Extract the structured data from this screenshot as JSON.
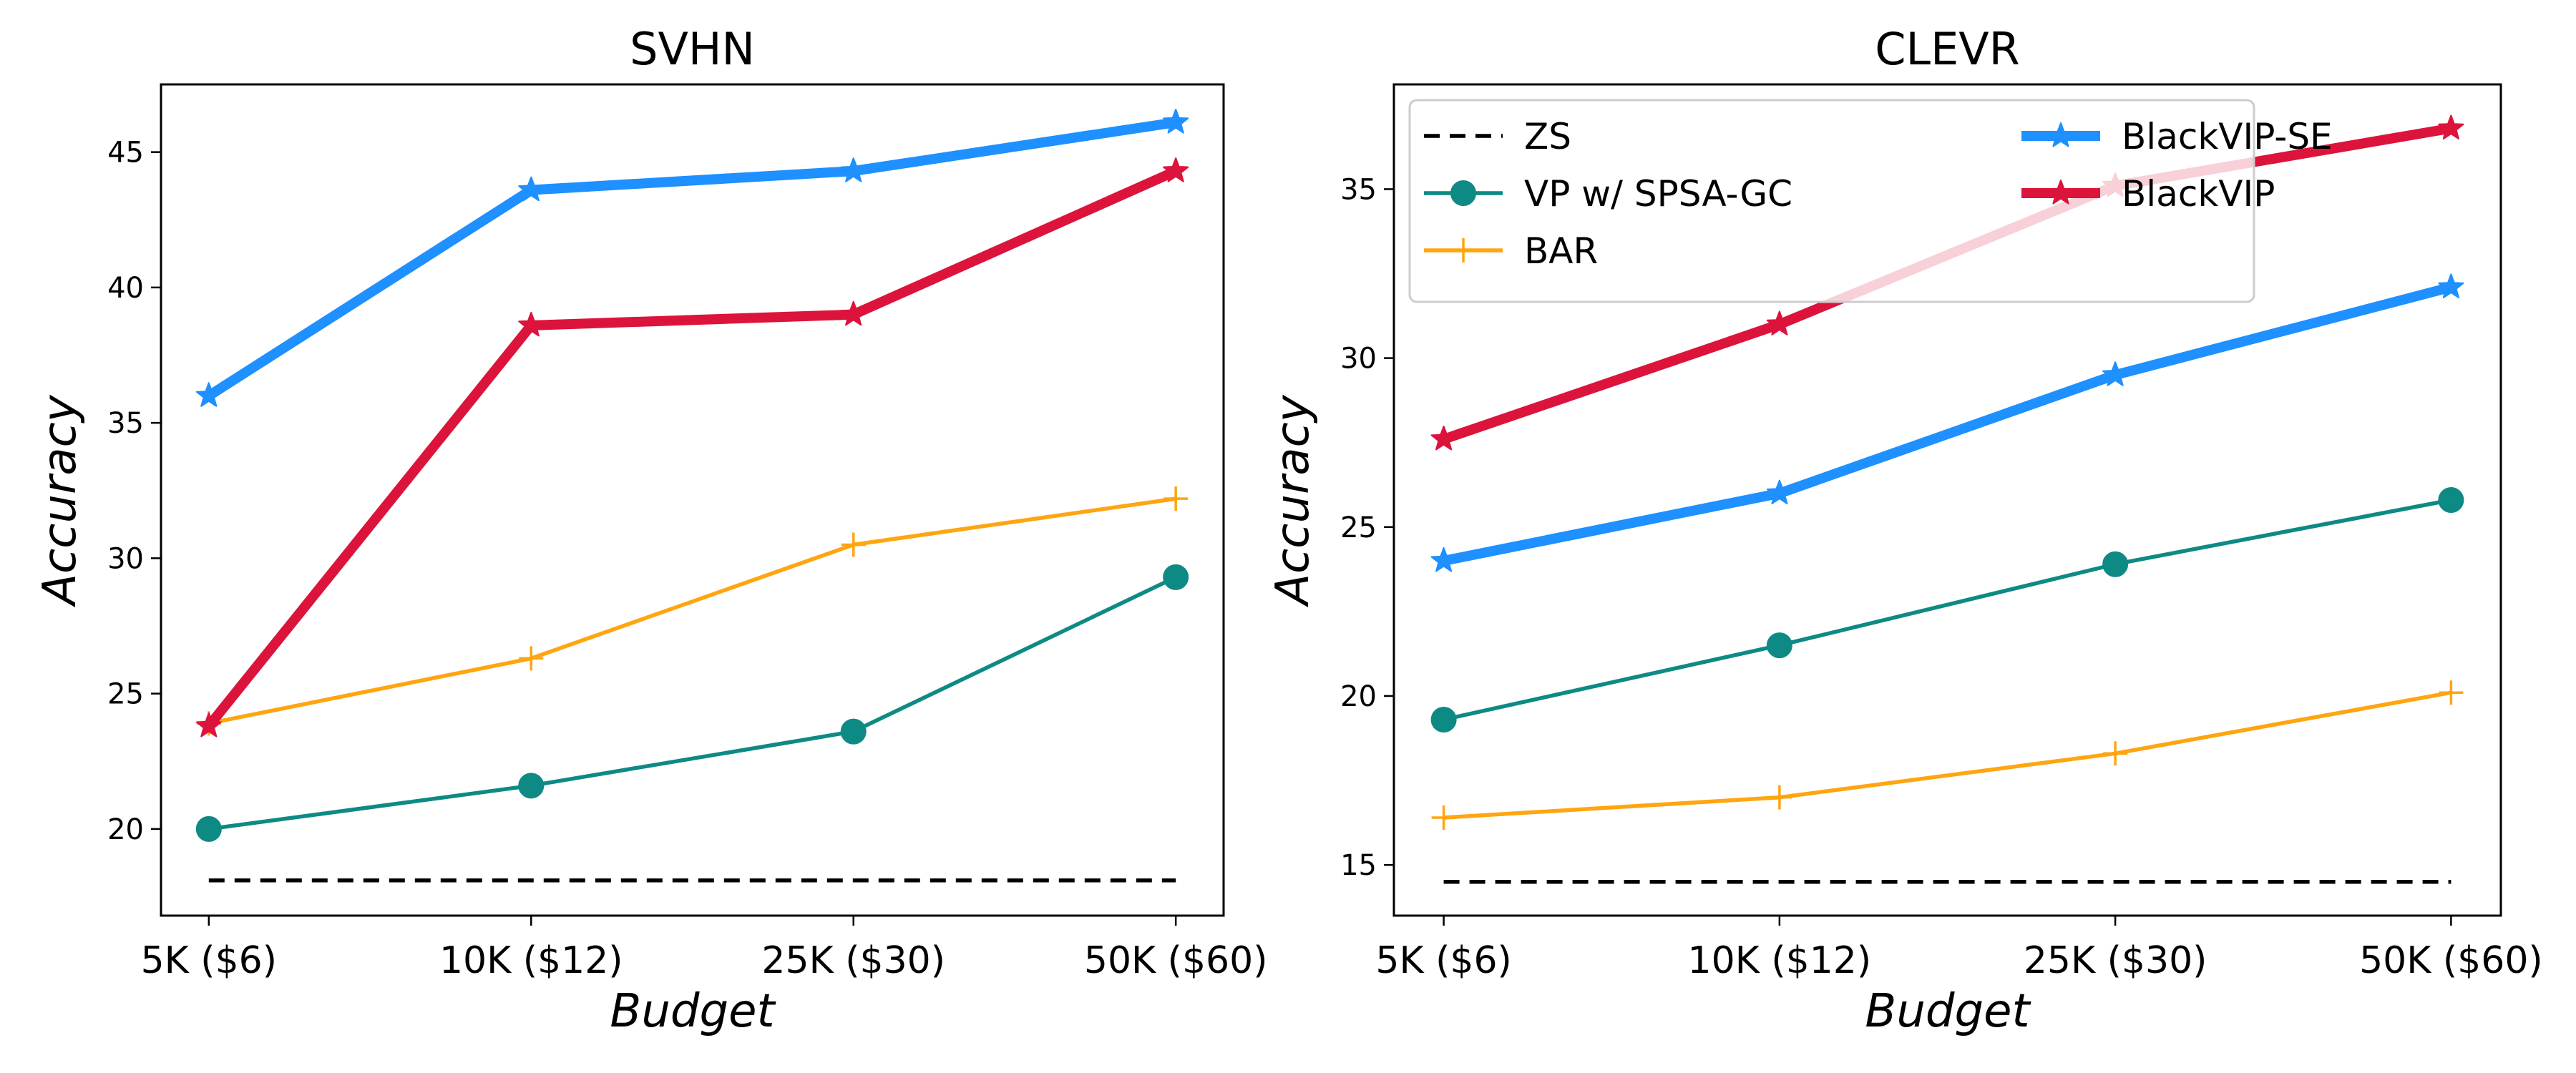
{
  "figure": {
    "budget_label": "Budget",
    "accuracy_label": "Accuracy"
  },
  "series_styles": [
    {
      "name": "ZS",
      "color": "#000000",
      "marker": "none",
      "dashed": true,
      "width": "thin"
    },
    {
      "name": "VP w/ SPSA-GC",
      "color": "#0e8a84",
      "marker": "circle",
      "dashed": false,
      "width": "thin"
    },
    {
      "name": "BAR",
      "color": "#ffa510",
      "marker": "plus",
      "dashed": false,
      "width": "thin"
    },
    {
      "name": "BlackVIP-SE",
      "color": "#1e90ff",
      "marker": "star",
      "dashed": false,
      "width": "thick"
    },
    {
      "name": "BlackVIP",
      "color": "#dc143c",
      "marker": "star",
      "dashed": false,
      "width": "thick"
    }
  ],
  "chart_data": [
    {
      "type": "line",
      "title": "SVHN",
      "xlabel": "Budget",
      "ylabel": "Accuracy",
      "categories": [
        "5K ($6)",
        "10K ($12)",
        "25K ($30)",
        "50K ($60)"
      ],
      "ylim": [
        16.8,
        47.5
      ],
      "yticks": [
        20,
        25,
        30,
        35,
        40,
        45
      ],
      "legend": false,
      "series": [
        {
          "name": "ZS",
          "values": [
            18.1,
            18.1,
            18.1,
            18.1
          ]
        },
        {
          "name": "VP w/ SPSA-GC",
          "values": [
            20.0,
            21.6,
            23.6,
            29.3
          ]
        },
        {
          "name": "BAR",
          "values": [
            23.9,
            26.3,
            30.5,
            32.2
          ]
        },
        {
          "name": "BlackVIP-SE",
          "values": [
            36.0,
            43.6,
            44.3,
            46.1
          ]
        },
        {
          "name": "BlackVIP",
          "values": [
            23.8,
            38.6,
            39.0,
            44.3
          ]
        }
      ]
    },
    {
      "type": "line",
      "title": "CLEVR",
      "xlabel": "Budget",
      "ylabel": "Accuracy",
      "categories": [
        "5K ($6)",
        "10K ($12)",
        "25K ($30)",
        "50K ($60)"
      ],
      "ylim": [
        13.5,
        38.1
      ],
      "yticks": [
        15,
        20,
        25,
        30,
        35
      ],
      "legend": true,
      "legend_location": "upper-left",
      "series": [
        {
          "name": "ZS",
          "values": [
            14.5,
            14.5,
            14.5,
            14.5
          ]
        },
        {
          "name": "VP w/ SPSA-GC",
          "values": [
            19.3,
            21.5,
            23.9,
            25.8
          ]
        },
        {
          "name": "BAR",
          "values": [
            16.4,
            17.0,
            18.3,
            20.1
          ]
        },
        {
          "name": "BlackVIP-SE",
          "values": [
            24.0,
            26.0,
            29.5,
            32.1
          ]
        },
        {
          "name": "BlackVIP",
          "values": [
            27.6,
            31.0,
            35.1,
            36.8
          ]
        }
      ]
    }
  ]
}
